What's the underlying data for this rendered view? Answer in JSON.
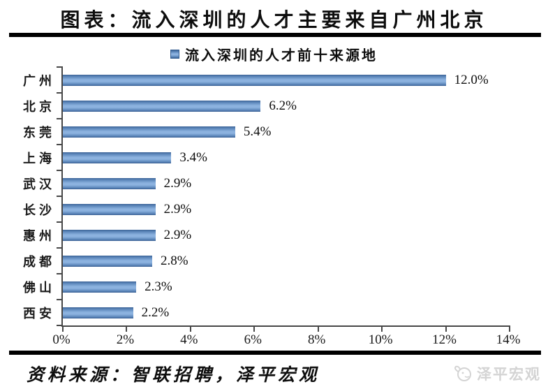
{
  "header": {
    "title": "图表：流入深圳的人才主要来自广州北京"
  },
  "chart_data": {
    "type": "bar",
    "orientation": "horizontal",
    "title": "图表：流入深圳的人才主要来自广州北京",
    "legend": "流入深圳的人才前十来源地",
    "legend_position": "top",
    "categories": [
      "广州",
      "北京",
      "东莞",
      "上海",
      "武汉",
      "长沙",
      "惠州",
      "成都",
      "佛山",
      "西安"
    ],
    "values": [
      12.0,
      6.2,
      5.4,
      3.4,
      2.9,
      2.9,
      2.9,
      2.8,
      2.3,
      2.2
    ],
    "value_labels": [
      "12.0%",
      "6.2%",
      "5.4%",
      "3.4%",
      "2.9%",
      "2.9%",
      "2.9%",
      "2.8%",
      "2.3%",
      "2.2%"
    ],
    "x_ticks": [
      "0%",
      "2%",
      "4%",
      "6%",
      "8%",
      "10%",
      "12%",
      "14%"
    ],
    "xlim": [
      0,
      14
    ],
    "xlabel": "",
    "ylabel": "",
    "grid": false,
    "bar_color": "#4f81bd",
    "axis_color": "#474747"
  },
  "footer": {
    "source": "资料来源：智联招聘，泽平宏观",
    "watermark": "泽平宏观"
  }
}
